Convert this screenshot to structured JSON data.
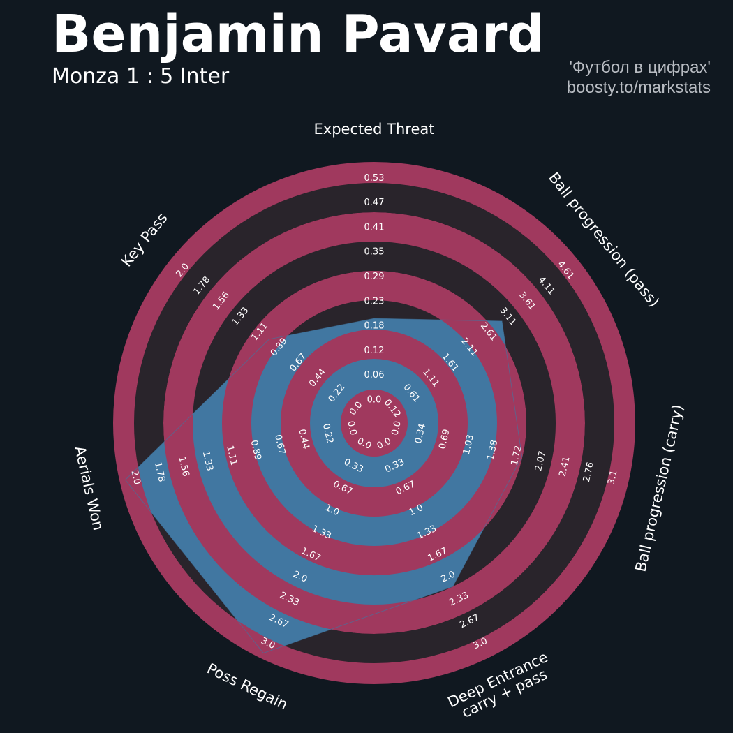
{
  "header": {
    "title": "Benjamin Pavard",
    "subtitle": "Monza 1 : 5 Inter",
    "credit_line1": "'Футбол в цифрах'",
    "credit_line2": "boosty.to/markstats"
  },
  "colors": {
    "background": "#101820",
    "ring_red": "#a0395e",
    "ring_dark": "#29242b",
    "player_fill": "#4177a1",
    "text": "#ffffff"
  },
  "chart_data": {
    "type": "radar",
    "title": "Benjamin Pavard",
    "subtitle": "Monza 1 : 5 Inter",
    "params": [
      {
        "label": "Expected Threat",
        "ticks": [
          "0.0",
          "0.06",
          "0.12",
          "0.18",
          "0.23",
          "0.29",
          "0.35",
          "0.41",
          "0.47",
          "0.53"
        ],
        "value": 0.17
      },
      {
        "label": "Ball progression (pass)",
        "ticks": [
          "0.12",
          "0.61",
          "1.11",
          "1.61",
          "2.11",
          "2.61",
          "3.11",
          "3.61",
          "4.11",
          "4.61"
        ],
        "value": 2.75
      },
      {
        "label": "Ball progression (carry)",
        "ticks": [
          "0.0",
          "0.34",
          "0.69",
          "1.03",
          "1.38",
          "1.72",
          "2.07",
          "2.41",
          "2.76",
          "3.1"
        ],
        "value": 1.65
      },
      {
        "label": "Deep Entrance\ncarry + pass",
        "ticks": [
          "0.0",
          "0.33",
          "0.67",
          "1.0",
          "1.33",
          "1.67",
          "2.0",
          "2.33",
          "2.67",
          "3.0"
        ],
        "value": 2.0
      },
      {
        "label": "Poss Regain",
        "ticks": [
          "0.0",
          "0.33",
          "0.67",
          "1.0",
          "1.33",
          "1.67",
          "2.0",
          "2.33",
          "2.67",
          "3.0"
        ],
        "value": 3.0
      },
      {
        "label": "Aerials Won",
        "ticks": [
          "0.0",
          "0.22",
          "0.44",
          "0.67",
          "0.89",
          "1.11",
          "1.33",
          "1.56",
          "1.78",
          "2.0"
        ],
        "value": 2.0
      },
      {
        "label": "Key Pass",
        "ticks": [
          "0.0",
          "0.22",
          "0.44",
          "0.67",
          "0.89",
          "1.11",
          "1.33",
          "1.56",
          "1.78",
          "2.0"
        ],
        "value": 0.91
      }
    ]
  }
}
